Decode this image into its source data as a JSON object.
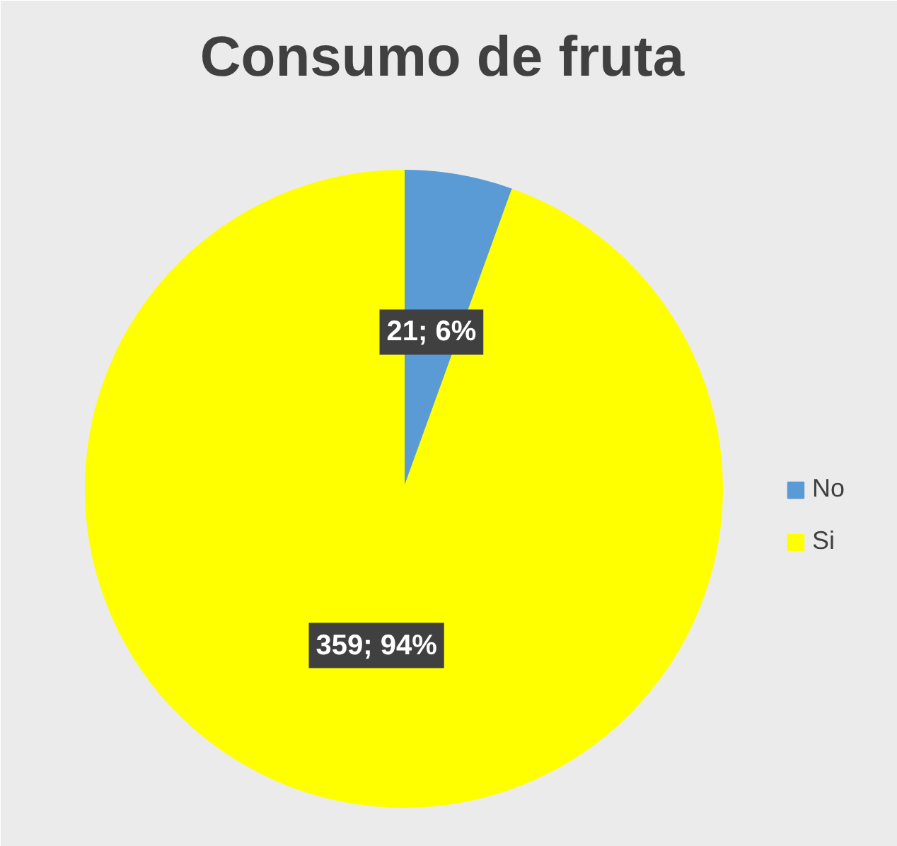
{
  "chart_data": {
    "type": "pie",
    "title": "Consumo de fruta",
    "categories": [
      "No",
      "Si"
    ],
    "values": [
      21,
      359
    ],
    "colors": [
      "#5b9bd5",
      "#ffff00"
    ],
    "value_labels": [
      "21; 6%",
      "359; 94%"
    ],
    "legend": "right"
  }
}
